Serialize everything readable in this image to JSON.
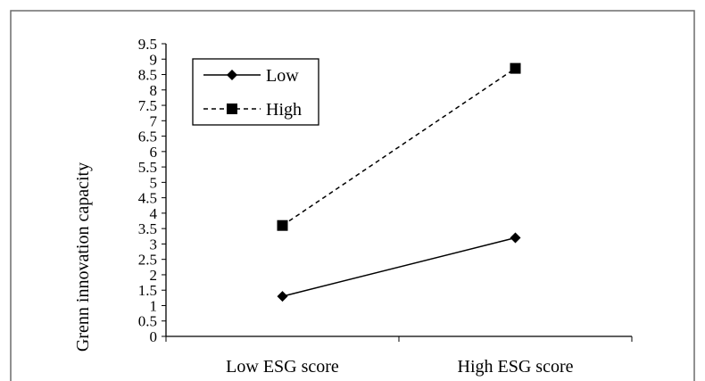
{
  "chart_data": {
    "type": "line",
    "title": "",
    "xlabel": "",
    "ylabel": "Grenn innovation capacity",
    "categories": [
      "Low ESG score",
      "High ESG score"
    ],
    "yticks": [
      "0",
      "0.5",
      "1",
      "1.5",
      "2",
      "2.5",
      "3",
      "3.5",
      "4",
      "4.5",
      "5",
      "5.5",
      "6",
      "6.5",
      "7",
      "7.5",
      "8",
      "8.5",
      "9",
      "9.5"
    ],
    "ylim": [
      0,
      9.5
    ],
    "grid": false,
    "legend_position": "top-left",
    "series": [
      {
        "name": "Low",
        "values": [
          1.3,
          3.2
        ],
        "marker": "diamond",
        "line": "solid",
        "color": "#000000"
      },
      {
        "name": "High",
        "values": [
          3.6,
          8.7
        ],
        "marker": "square",
        "line": "dashed",
        "color": "#000000"
      }
    ]
  }
}
